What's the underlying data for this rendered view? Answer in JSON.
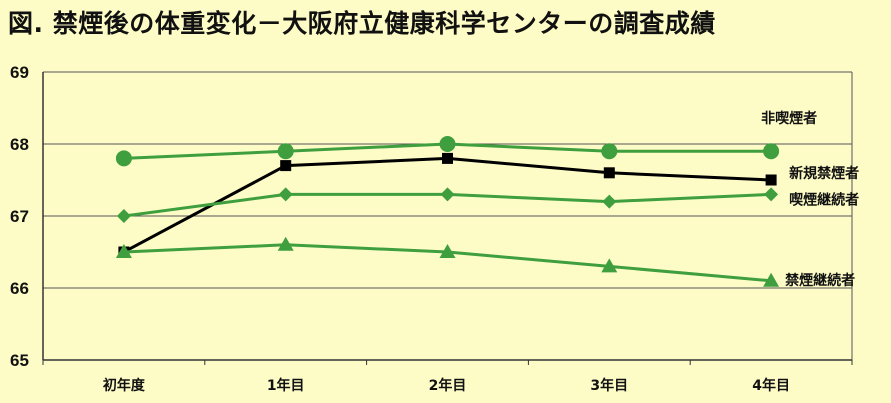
{
  "chart_data": {
    "type": "line",
    "title": "図. 禁煙後の体重変化－大阪府立健康科学センターの調査成績",
    "categories": [
      "初年度",
      "1年目",
      "2年目",
      "3年目",
      "4年目"
    ],
    "ylim": [
      65,
      69
    ],
    "yticks": [
      65,
      66,
      67,
      68,
      69
    ],
    "grid": true,
    "series": [
      {
        "name": "非喫煙者",
        "values": [
          67.8,
          67.9,
          68.0,
          67.9,
          67.9
        ],
        "color": "#3f9f3f",
        "marker": "circle"
      },
      {
        "name": "新規禁煙者",
        "values": [
          66.5,
          67.7,
          67.8,
          67.6,
          67.5
        ],
        "color": "#000000",
        "marker": "square"
      },
      {
        "name": "喫煙継続者",
        "values": [
          67.0,
          67.3,
          67.3,
          67.2,
          67.3
        ],
        "color": "#3f9f3f",
        "marker": "diamond"
      },
      {
        "name": "禁煙継続者",
        "values": [
          66.5,
          66.6,
          66.5,
          66.3,
          66.1
        ],
        "color": "#3f9f3f",
        "marker": "triangle"
      }
    ]
  }
}
